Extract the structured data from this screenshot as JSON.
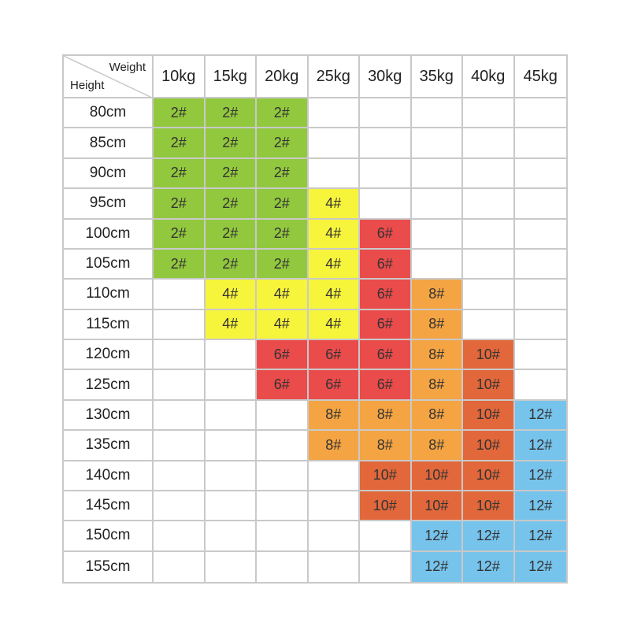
{
  "header": {
    "weight_label": "Weight",
    "height_label": "Height",
    "weights": [
      "10kg",
      "15kg",
      "20kg",
      "25kg",
      "30kg",
      "35kg",
      "40kg",
      "45kg"
    ]
  },
  "colors": {
    "2#": "#92c83e",
    "4#": "#f7f43c",
    "6#": "#ea4b4b",
    "8#": "#f4a443",
    "10#": "#e2673a",
    "12#": "#76c3ec",
    "border": "#c9c9c9"
  },
  "rows": [
    {
      "height": "80cm",
      "sizes": [
        "2#",
        "2#",
        "2#",
        "",
        "",
        "",
        "",
        ""
      ]
    },
    {
      "height": "85cm",
      "sizes": [
        "2#",
        "2#",
        "2#",
        "",
        "",
        "",
        "",
        ""
      ]
    },
    {
      "height": "90cm",
      "sizes": [
        "2#",
        "2#",
        "2#",
        "",
        "",
        "",
        "",
        ""
      ]
    },
    {
      "height": "95cm",
      "sizes": [
        "2#",
        "2#",
        "2#",
        "4#",
        "",
        "",
        "",
        ""
      ]
    },
    {
      "height": "100cm",
      "sizes": [
        "2#",
        "2#",
        "2#",
        "4#",
        "6#",
        "",
        "",
        ""
      ]
    },
    {
      "height": "105cm",
      "sizes": [
        "2#",
        "2#",
        "2#",
        "4#",
        "6#",
        "",
        "",
        ""
      ]
    },
    {
      "height": "110cm",
      "sizes": [
        "",
        "4#",
        "4#",
        "4#",
        "6#",
        "8#",
        "",
        ""
      ]
    },
    {
      "height": "115cm",
      "sizes": [
        "",
        "4#",
        "4#",
        "4#",
        "6#",
        "8#",
        "",
        ""
      ]
    },
    {
      "height": "120cm",
      "sizes": [
        "",
        "",
        "6#",
        "6#",
        "6#",
        "8#",
        "10#",
        ""
      ]
    },
    {
      "height": "125cm",
      "sizes": [
        "",
        "",
        "6#",
        "6#",
        "6#",
        "8#",
        "10#",
        ""
      ]
    },
    {
      "height": "130cm",
      "sizes": [
        "",
        "",
        "",
        "8#",
        "8#",
        "8#",
        "10#",
        "12#"
      ]
    },
    {
      "height": "135cm",
      "sizes": [
        "",
        "",
        "",
        "8#",
        "8#",
        "8#",
        "10#",
        "12#"
      ]
    },
    {
      "height": "140cm",
      "sizes": [
        "",
        "",
        "",
        "",
        "10#",
        "10#",
        "10#",
        "12#"
      ]
    },
    {
      "height": "145cm",
      "sizes": [
        "",
        "",
        "",
        "",
        "10#",
        "10#",
        "10#",
        "12#"
      ]
    },
    {
      "height": "150cm",
      "sizes": [
        "",
        "",
        "",
        "",
        "",
        "12#",
        "12#",
        "12#"
      ]
    },
    {
      "height": "155cm",
      "sizes": [
        "",
        "",
        "",
        "",
        "",
        "12#",
        "12#",
        "12#"
      ]
    }
  ]
}
